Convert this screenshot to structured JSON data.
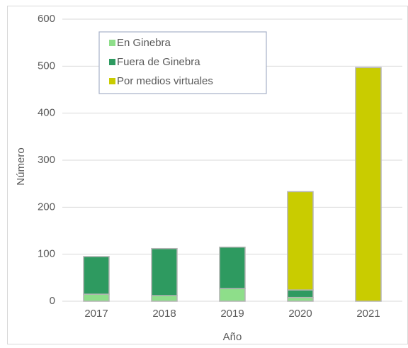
{
  "chart_data": {
    "type": "stacked_bar",
    "categories": [
      "2017",
      "2018",
      "2019",
      "2020",
      "2021"
    ],
    "series": [
      {
        "name": "En Ginebra",
        "color": "#8ede8a",
        "values": [
          15,
          12,
          27,
          8,
          0
        ]
      },
      {
        "name": "Fuera de Ginebra",
        "color": "#2e9a60",
        "values": [
          80,
          100,
          88,
          16,
          0
        ]
      },
      {
        "name": "Por medios virtuales",
        "color": "#c9cc00",
        "values": [
          0,
          0,
          0,
          209,
          497
        ]
      }
    ],
    "x_label": "Año",
    "y_label": "Número",
    "ylim": [
      0,
      600
    ],
    "yticks": [
      0,
      100,
      200,
      300,
      400,
      500,
      600
    ],
    "grid": true,
    "legend": "upper left"
  }
}
